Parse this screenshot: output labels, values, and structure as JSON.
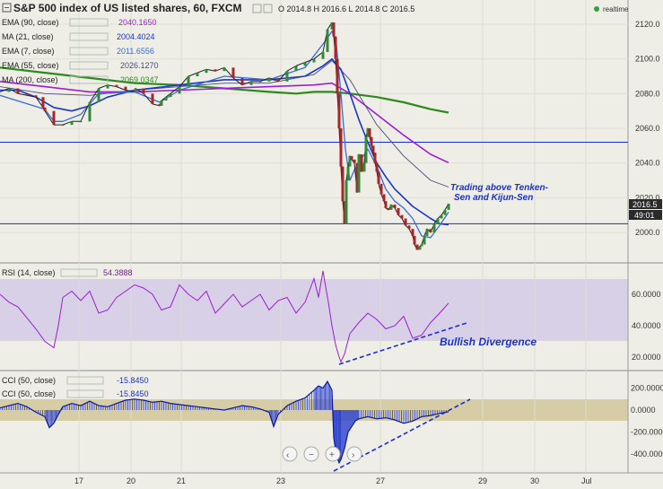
{
  "header": {
    "title": "S&P 500 index of US listed shares, 60, FXCM",
    "ohlc": "O 2014.8 H 2016.6 L 2014.8 C 2016.5",
    "realtime": "realtime"
  },
  "indicators": [
    {
      "label": "EMA (90, close)",
      "value": "2040.1650",
      "color": "#9a1fd6"
    },
    {
      "label": "MA (21, close)",
      "value": "2004.4024",
      "color": "#1a35c9"
    },
    {
      "label": "EMA (7, close)",
      "value": "2011.6556",
      "color": "#3a6cd9"
    },
    {
      "label": "EMA (55, close)",
      "value": "2026.1270",
      "color": "#4a4a86"
    },
    {
      "label": "MA (200, close)",
      "value": "2069.0347",
      "color": "#2d8a1e"
    }
  ],
  "price_axis": {
    "ticks": [
      "2120.0",
      "2100.0",
      "2080.0",
      "2060.0",
      "2040.0",
      "2020.0",
      "2000.0"
    ],
    "tick_values": [
      2120,
      2100,
      2080,
      2060,
      2040,
      2020,
      2000
    ],
    "last_price": "2016.5",
    "countdown": "49:01"
  },
  "annotations": {
    "trend_note": "Trading above Tenken-Sen and Kijun-Sen",
    "divergence": "Bullish Divergence"
  },
  "rsi": {
    "label": "RSI (14, close)",
    "value": "54.3888",
    "ticks": [
      "60.0000",
      "40.0000",
      "20.0000"
    ],
    "tick_values": [
      60,
      40,
      20
    ]
  },
  "cci": {
    "label1": "CCI (50, close)",
    "value1": "-15.8450",
    "label2": "CCI (50, close)",
    "value2": "-15.8450",
    "ticks": [
      "200.0000",
      "0.0000",
      "-200.0000",
      "-400.0000"
    ],
    "tick_values": [
      200,
      0,
      -200,
      -400
    ]
  },
  "time_axis": {
    "labels": [
      "17",
      "20",
      "21",
      "23",
      "27",
      "29",
      "30",
      "Jul"
    ]
  },
  "chart_data": {
    "type": "line",
    "price_levels": {
      "support_1": 2052,
      "support_2": 2005
    },
    "series": [
      {
        "name": "Price (close)",
        "x": [
          0,
          10,
          20,
          30,
          40,
          48,
          50,
          60,
          70,
          80,
          90,
          100,
          110,
          120,
          130,
          140,
          150,
          151,
          160,
          170,
          178,
          180,
          185,
          190,
          200,
          210,
          220,
          230,
          240,
          250,
          260,
          270,
          280,
          290,
          300,
          310,
          320,
          330,
          340,
          350,
          360,
          365,
          370,
          372,
          374,
          376,
          378,
          380,
          382,
          384,
          386,
          388,
          390,
          392,
          395,
          398,
          400,
          403,
          406,
          408,
          410,
          412,
          414,
          416,
          418,
          420,
          422,
          425,
          428,
          430,
          433,
          436,
          440,
          444,
          448,
          452,
          456,
          460,
          462,
          465,
          468,
          470,
          473,
          476,
          480,
          484,
          488,
          492,
          496,
          500
        ],
        "values": [
          2081,
          2083,
          2080,
          2079,
          2078,
          2072,
          2070,
          2062,
          2062,
          2064,
          2064,
          2075,
          2083,
          2085,
          2084,
          2082,
          2081,
          2083,
          2080,
          2074,
          2073,
          2076,
          2078,
          2080,
          2084,
          2090,
          2092,
          2094,
          2093,
          2095,
          2089,
          2085,
          2087,
          2087,
          2089,
          2087,
          2093,
          2096,
          2098,
          2100,
          2104,
          2117,
          2121,
          2113,
          2100,
          2080,
          2060,
          2038,
          2018,
          2005,
          2030,
          2038,
          2044,
          2042,
          2040,
          2023,
          2045,
          2035,
          2040,
          2055,
          2060,
          2055,
          2050,
          2046,
          2040,
          2035,
          2028,
          2022,
          2018,
          2014,
          2013,
          2016,
          2014,
          2010,
          2008,
          2004,
          2002,
          1998,
          1993,
          1990,
          1992,
          1993,
          1998,
          2002,
          2000,
          2005,
          2008,
          2010,
          2013,
          2016.5
        ]
      },
      {
        "name": "EMA (7, close)",
        "x": [
          0,
          50,
          60,
          70,
          90,
          110,
          150,
          178,
          200,
          250,
          300,
          340,
          365,
          370,
          375,
          380,
          385,
          390,
          395,
          400,
          410,
          420,
          430,
          440,
          450,
          460,
          470,
          480,
          490,
          500
        ],
        "values": [
          2079,
          2071,
          2064,
          2064,
          2068,
          2080,
          2081,
          2075,
          2082,
          2090,
          2088,
          2095,
          2112,
          2116,
          2108,
          2080,
          2048,
          2030,
          2036,
          2040,
          2048,
          2038,
          2025,
          2018,
          2014,
          2008,
          1998,
          1997,
          2004,
          2011.66
        ]
      },
      {
        "name": "MA (21, close)",
        "x": [
          0,
          20,
          40,
          60,
          80,
          100,
          120,
          150,
          200,
          250,
          300,
          340,
          360,
          370,
          380,
          390,
          400,
          410,
          420,
          430,
          440,
          460,
          480,
          490,
          500
        ],
        "values": [
          2082,
          2082,
          2078,
          2072,
          2070,
          2073,
          2078,
          2082,
          2085,
          2088,
          2088,
          2090,
          2096,
          2100,
          2094,
          2080,
          2065,
          2052,
          2040,
          2032,
          2025,
          2015,
          2008,
          2005,
          2004.4
        ]
      },
      {
        "name": "EMA (55, close)",
        "x": [
          0,
          50,
          100,
          150,
          200,
          250,
          300,
          350,
          370,
          390,
          420,
          450,
          480,
          500
        ],
        "values": [
          2084,
          2080,
          2079,
          2082,
          2084,
          2086,
          2086,
          2091,
          2099,
          2088,
          2062,
          2044,
          2030,
          2026.13
        ]
      },
      {
        "name": "EMA (90, close)",
        "x": [
          0,
          50,
          100,
          150,
          200,
          250,
          300,
          350,
          370,
          390,
          420,
          450,
          480,
          500
        ],
        "values": [
          2087,
          2084,
          2081,
          2081,
          2082,
          2083,
          2084,
          2085,
          2086,
          2080,
          2068,
          2056,
          2045,
          2040.17
        ]
      },
      {
        "name": "MA (200, close)",
        "x": [
          0,
          50,
          100,
          150,
          200,
          250,
          300,
          330,
          350,
          370,
          390,
          420,
          450,
          480,
          500
        ],
        "values": [
          2095,
          2092,
          2089,
          2086,
          2085,
          2083,
          2081,
          2080,
          2081,
          2081,
          2080,
          2078,
          2075,
          2071,
          2069.03
        ]
      }
    ],
    "rsi": {
      "x": [
        0,
        10,
        20,
        30,
        40,
        50,
        60,
        65,
        70,
        80,
        90,
        100,
        110,
        120,
        130,
        140,
        150,
        160,
        170,
        180,
        190,
        200,
        210,
        220,
        230,
        240,
        250,
        260,
        270,
        280,
        290,
        300,
        310,
        320,
        330,
        340,
        350,
        355,
        360,
        362,
        366,
        370,
        374,
        378,
        380,
        384,
        390,
        400,
        410,
        420,
        430,
        440,
        450,
        460,
        470,
        480,
        490,
        500
      ],
      "values": [
        60,
        55,
        52,
        45,
        38,
        30,
        26,
        40,
        58,
        62,
        56,
        62,
        48,
        50,
        58,
        62,
        66,
        64,
        60,
        50,
        52,
        66,
        60,
        56,
        62,
        48,
        54,
        60,
        52,
        56,
        60,
        50,
        56,
        58,
        48,
        55,
        70,
        58,
        75,
        68,
        55,
        40,
        28,
        20,
        17,
        22,
        35,
        42,
        48,
        44,
        38,
        40,
        46,
        32,
        34,
        42,
        48,
        54.39
      ]
    },
    "cci": {
      "x": [
        0,
        10,
        20,
        30,
        40,
        50,
        55,
        60,
        65,
        70,
        80,
        90,
        100,
        110,
        120,
        130,
        140,
        150,
        160,
        170,
        180,
        190,
        200,
        210,
        220,
        230,
        240,
        250,
        260,
        270,
        280,
        290,
        300,
        305,
        310,
        320,
        330,
        340,
        350,
        355,
        360,
        365,
        370,
        372,
        375,
        378,
        380,
        384,
        388,
        392,
        396,
        400,
        410,
        420,
        430,
        440,
        450,
        460,
        470,
        480,
        490,
        500
      ],
      "values": [
        20,
        40,
        60,
        30,
        -20,
        -60,
        -160,
        -120,
        -40,
        30,
        60,
        40,
        80,
        40,
        30,
        60,
        90,
        100,
        90,
        70,
        80,
        60,
        50,
        40,
        30,
        20,
        10,
        0,
        20,
        40,
        30,
        10,
        -20,
        -150,
        -40,
        40,
        80,
        110,
        180,
        220,
        200,
        260,
        180,
        -250,
        -420,
        -480,
        -450,
        -350,
        -200,
        -150,
        -100,
        -80,
        -60,
        -80,
        -70,
        -90,
        -120,
        -100,
        -60,
        -50,
        -30,
        -15.85
      ]
    },
    "xlim": [
      0,
      500
    ],
    "ylim_price": [
      1985,
      2125
    ],
    "ylim_rsi": [
      10,
      80
    ],
    "ylim_cci": [
      -520,
      330
    ]
  }
}
